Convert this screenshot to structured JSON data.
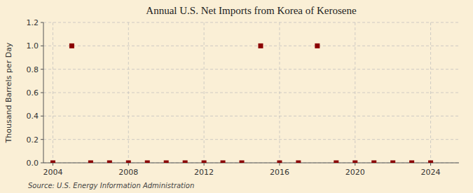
{
  "chart_data": {
    "type": "scatter",
    "title": "Annual U.S. Net Imports from Korea of Kerosene",
    "ylabel": "Thousand Barrels per Day",
    "source": "Source: U.S. Energy Information Administration",
    "x": [
      2004,
      2005,
      2006,
      2007,
      2008,
      2009,
      2010,
      2011,
      2012,
      2013,
      2014,
      2015,
      2016,
      2017,
      2018,
      2019,
      2020,
      2021,
      2022,
      2023,
      2024
    ],
    "values": [
      0,
      1,
      0,
      0,
      0,
      0,
      0,
      0,
      0,
      0,
      0,
      1,
      0,
      0,
      1,
      0,
      0,
      0,
      0,
      0,
      0
    ],
    "color": "#8b0000",
    "marker": "square",
    "xlim": [
      2003.5,
      2025.5
    ],
    "ylim": [
      0.0,
      1.2
    ],
    "xticks": [
      2004,
      2008,
      2012,
      2016,
      2020,
      2024
    ],
    "yticks": [
      {
        "value": 0.0,
        "label": "0.0"
      },
      0.2,
      0.4,
      0.6,
      0.8,
      {
        "value": 1.0,
        "label": "1.0"
      },
      1.2
    ],
    "grid": true
  }
}
